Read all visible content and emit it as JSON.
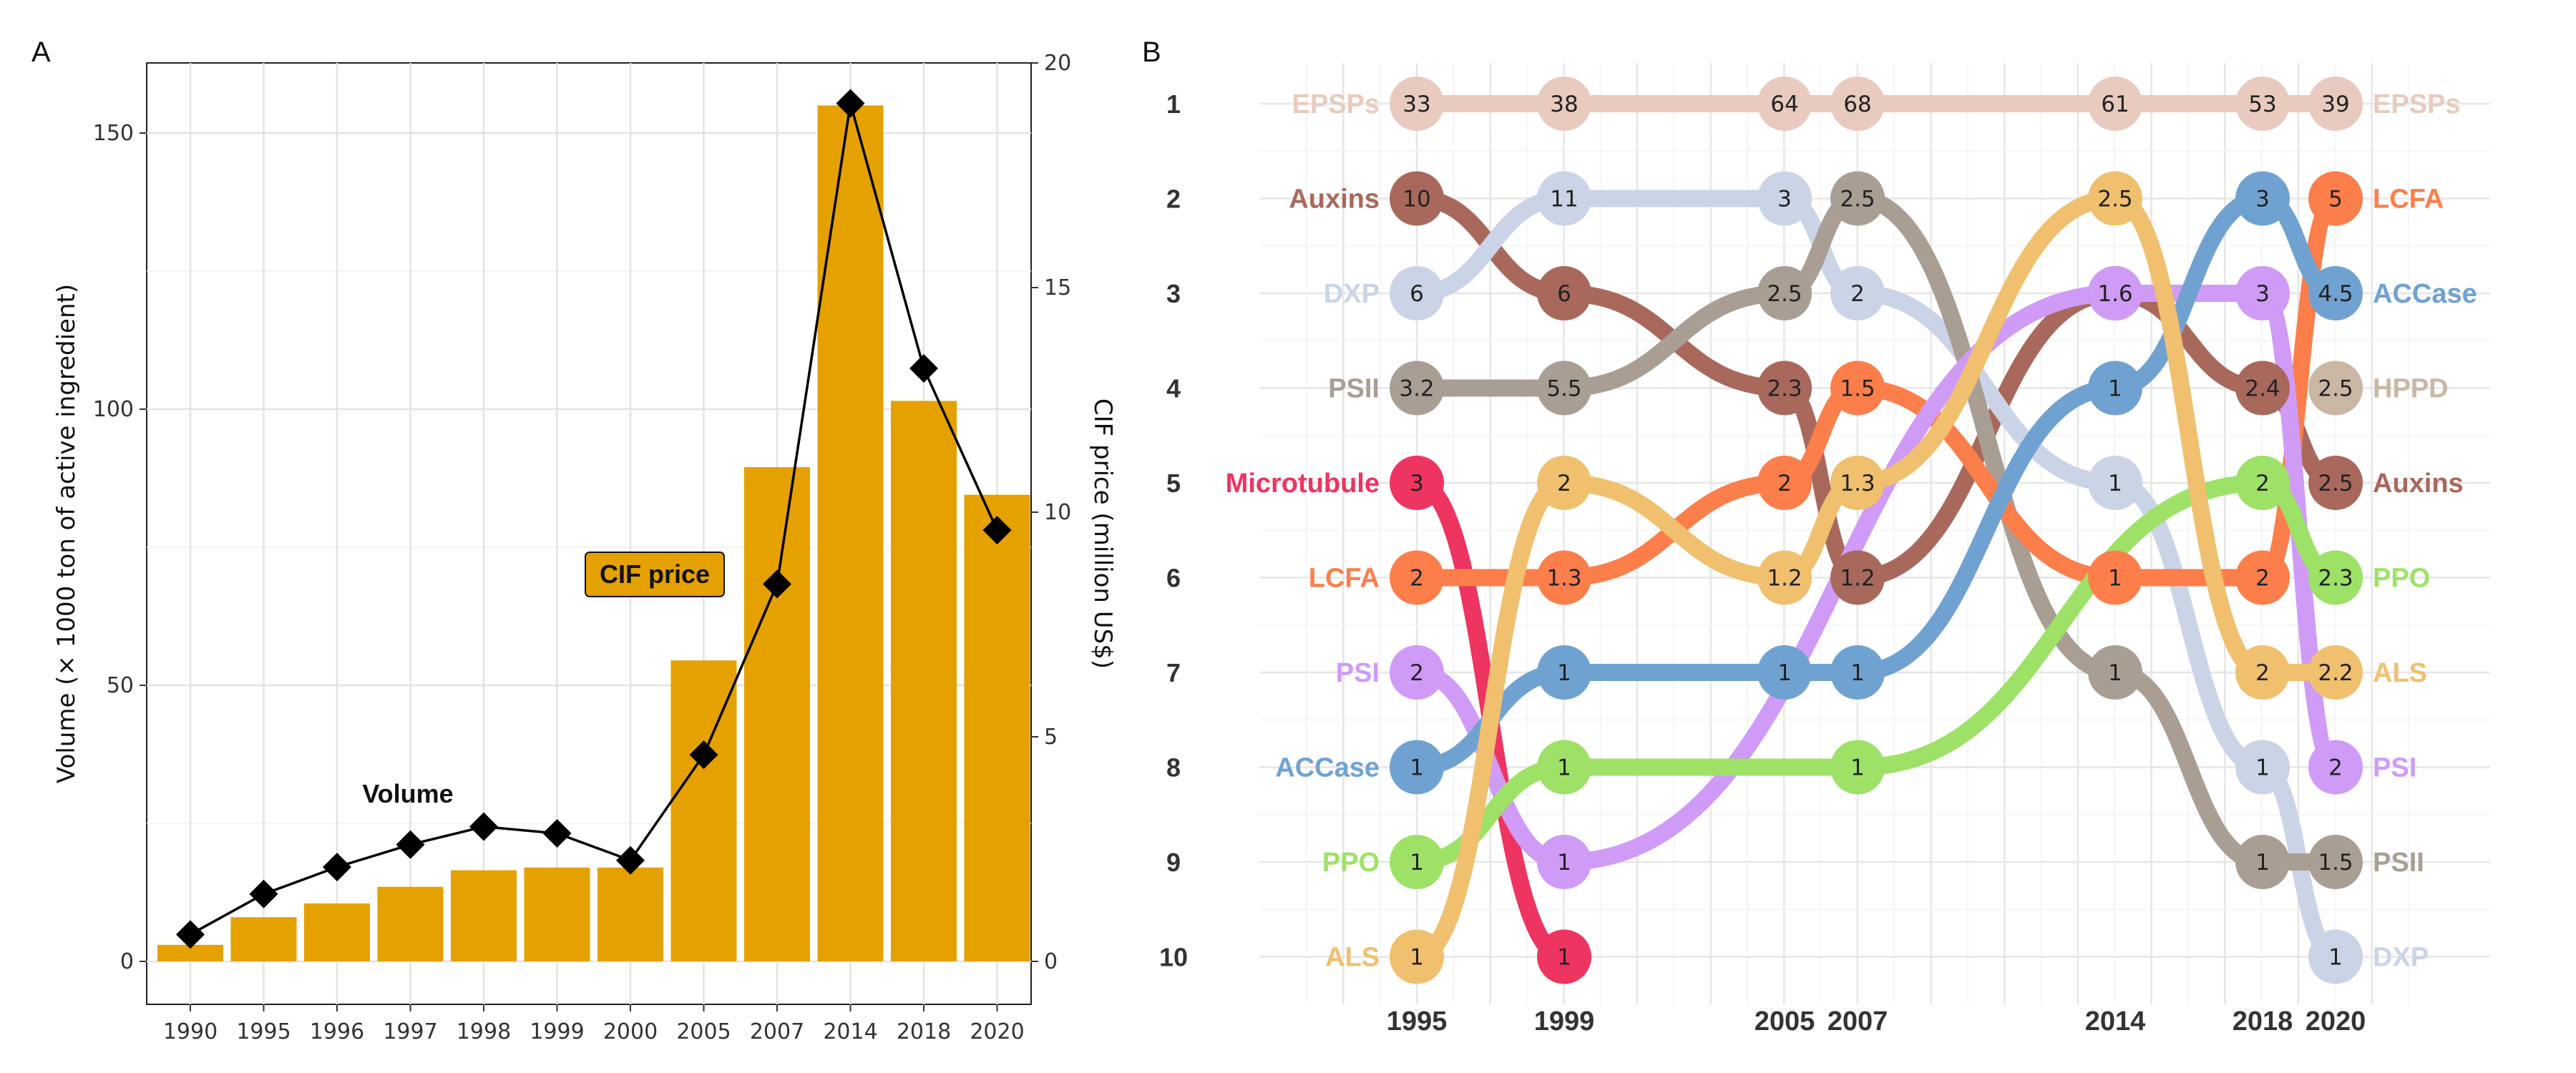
{
  "panels": {
    "a": "A",
    "b": "B"
  },
  "chart_data": [
    {
      "type": "bar",
      "panel": "A",
      "categories": [
        "1990",
        "1995",
        "1996",
        "1997",
        "1998",
        "1999",
        "2000",
        "2005",
        "2007",
        "2014",
        "2018",
        "2020"
      ],
      "series": [
        {
          "name": "Volume",
          "axis": "left",
          "values": [
            3,
            8,
            10.5,
            13.5,
            16.5,
            17,
            17,
            54.5,
            89.5,
            155,
            101.5,
            84.5
          ],
          "color": "#E5A100"
        },
        {
          "name": "CIF price",
          "axis": "right",
          "type": "line",
          "values": [
            0.6,
            1.5,
            2.1,
            2.6,
            3.0,
            2.85,
            2.25,
            4.6,
            8.4,
            19.1,
            13.2,
            9.6
          ],
          "color": "#000000"
        }
      ],
      "ylabel": "Volume (× 1000 ton of active ingredient)",
      "y2label": "CIF price (million US$)",
      "ylim": [
        0,
        160
      ],
      "y2lim": [
        0,
        20
      ],
      "yticks": [
        "0",
        "50",
        "100",
        "150"
      ],
      "y2ticks": [
        "0",
        "5",
        "10",
        "15",
        "20"
      ],
      "annotations": [
        "Volume",
        "CIF price"
      ],
      "grid": true
    },
    {
      "type": "bump",
      "panel": "B",
      "years": [
        "1995",
        "1999",
        "2005",
        "2007",
        "2014",
        "2018",
        "2020"
      ],
      "ranks": [
        "1",
        "2",
        "3",
        "4",
        "5",
        "6",
        "7",
        "8",
        "9",
        "10"
      ],
      "grid": true,
      "series": [
        {
          "name": "EPSPs",
          "color": "#E8CBBE",
          "points": [
            [
              "1995",
              1,
              "33"
            ],
            [
              "1999",
              1,
              "38"
            ],
            [
              "2005",
              1,
              "64"
            ],
            [
              "2007",
              1,
              "68"
            ],
            [
              "2014",
              1,
              "61"
            ],
            [
              "2018",
              1,
              "53"
            ],
            [
              "2020",
              1,
              "39"
            ]
          ]
        },
        {
          "name": "Auxins",
          "color": "#A9685C",
          "points": [
            [
              "1995",
              2,
              "10"
            ],
            [
              "1999",
              3,
              "6"
            ],
            [
              "2005",
              4,
              "2.3"
            ],
            [
              "2007",
              6,
              "1.2"
            ],
            [
              "2014",
              3,
              "1.6"
            ],
            [
              "2018",
              4,
              "2.4"
            ],
            [
              "2020",
              5,
              "2.5"
            ]
          ]
        },
        {
          "name": "DXP",
          "color": "#CBD3E6",
          "points": [
            [
              "1995",
              3,
              "6"
            ],
            [
              "1999",
              2,
              "11"
            ],
            [
              "2005",
              2,
              "3"
            ],
            [
              "2007",
              3,
              "2"
            ],
            [
              "2014",
              5,
              "1"
            ],
            [
              "2018",
              8,
              "1"
            ],
            [
              "2020",
              10,
              "1"
            ]
          ]
        },
        {
          "name": "PSII",
          "color": "#A99E93",
          "points": [
            [
              "1995",
              4,
              "3.2"
            ],
            [
              "1999",
              4,
              "5.5"
            ],
            [
              "2005",
              3,
              "2.5"
            ],
            [
              "2007",
              2,
              "2.5"
            ],
            [
              "2014",
              7,
              "1"
            ],
            [
              "2018",
              9,
              "1"
            ],
            [
              "2020",
              9,
              "1.5"
            ]
          ]
        },
        {
          "name": "Microtubule",
          "color": "#EE3461",
          "points": [
            [
              "1995",
              5,
              "3"
            ],
            [
              "1999",
              10,
              "1"
            ]
          ]
        },
        {
          "name": "LCFA",
          "color": "#FC7E4B",
          "points": [
            [
              "1995",
              6,
              "2"
            ],
            [
              "1999",
              6,
              "1.3"
            ],
            [
              "2005",
              5,
              "2"
            ],
            [
              "2007",
              4,
              "1.5"
            ],
            [
              "2014",
              6,
              "1"
            ],
            [
              "2018",
              6,
              "2"
            ],
            [
              "2020",
              2,
              "5"
            ]
          ]
        },
        {
          "name": "PSI",
          "color": "#CF9BF6",
          "points": [
            [
              "1995",
              7,
              "2"
            ],
            [
              "1999",
              9,
              "1"
            ],
            [
              "2014",
              3,
              "1.6"
            ],
            [
              "2018",
              3,
              "3"
            ],
            [
              "2020",
              8,
              "2"
            ]
          ]
        },
        {
          "name": "ACCase",
          "color": "#6FA2D1",
          "points": [
            [
              "1995",
              8,
              "1"
            ],
            [
              "1999",
              7,
              "1"
            ],
            [
              "2005",
              7,
              "1"
            ],
            [
              "2007",
              7,
              "1"
            ],
            [
              "2014",
              4,
              "1"
            ],
            [
              "2018",
              2,
              "3"
            ],
            [
              "2020",
              3,
              "4.5"
            ]
          ]
        },
        {
          "name": "PPO",
          "color": "#9DE266",
          "points": [
            [
              "1995",
              9,
              "1"
            ],
            [
              "1999",
              8,
              "1"
            ],
            [
              "2007",
              8,
              "1"
            ],
            [
              "2018",
              5,
              "2"
            ],
            [
              "2020",
              6,
              "2.3"
            ]
          ]
        },
        {
          "name": "ALS",
          "color": "#F0C06E",
          "points": [
            [
              "1995",
              10,
              "1"
            ],
            [
              "1999",
              5,
              "2"
            ],
            [
              "2005",
              6,
              "1.2"
            ],
            [
              "2007",
              5,
              "1.3"
            ],
            [
              "2014",
              2,
              "2.5"
            ],
            [
              "2018",
              7,
              "2"
            ],
            [
              "2020",
              7,
              "2.2"
            ]
          ]
        },
        {
          "name": "HPPD",
          "color": "#C9B7A3",
          "points": [
            [
              "2020",
              4,
              "2.5"
            ]
          ]
        }
      ]
    }
  ]
}
